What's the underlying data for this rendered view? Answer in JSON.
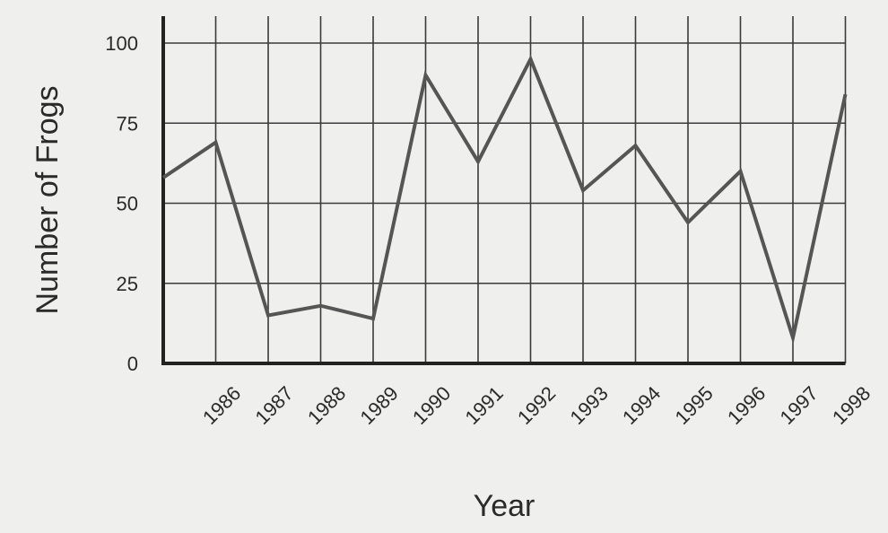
{
  "chart_data": {
    "type": "line",
    "title": "",
    "xlabel": "Year",
    "ylabel": "Number of Frogs",
    "x_start": "",
    "categories": [
      "1986",
      "1987",
      "1988",
      "1989",
      "1990",
      "1991",
      "1992",
      "1993",
      "1994",
      "1995",
      "1996",
      "1997",
      "1998"
    ],
    "series": [
      {
        "name": "",
        "values": [
          58,
          69,
          15,
          18,
          14,
          90,
          63,
          95,
          54,
          68,
          44,
          60,
          8,
          84
        ]
      }
    ],
    "x_values": [
      "",
      "1986",
      "1987",
      "1988",
      "1989",
      "1990",
      "1991",
      "1992",
      "1993",
      "1994",
      "1995",
      "1996",
      "1997",
      "1998"
    ],
    "yticks": [
      0,
      25,
      50,
      75,
      100
    ],
    "ylim": [
      0,
      100
    ],
    "grid": true,
    "legend": "none",
    "colors": {
      "line": "#555555",
      "grid": "#3a3a3a",
      "axis": "#222222",
      "background": "#efefed"
    }
  }
}
